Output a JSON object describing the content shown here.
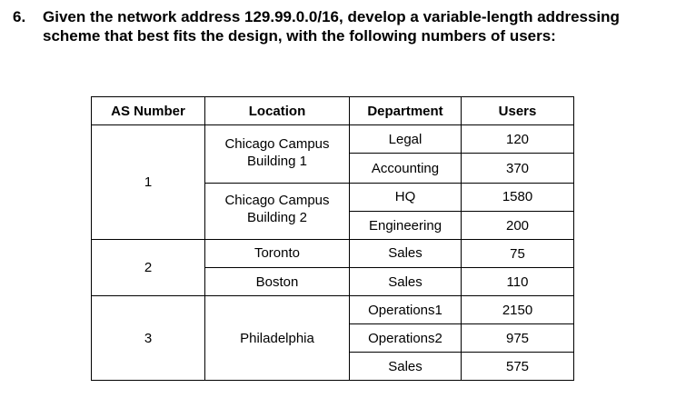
{
  "question": {
    "number": "6.",
    "text": "Given the network address 129.99.0.0/16, develop a variable-length addressing scheme that best fits the design, with the following numbers of users:"
  },
  "table": {
    "headers": {
      "as_number": "AS Number",
      "location": "Location",
      "department": "Department",
      "users": "Users"
    },
    "as_numbers": [
      "1",
      "2",
      "3"
    ],
    "locations": {
      "chicago1_line1": "Chicago Campus",
      "chicago1_line2": "Building 1",
      "chicago2_line1": "Chicago Campus",
      "chicago2_line2": "Building 2",
      "toronto": "Toronto",
      "boston": "Boston",
      "philadelphia": "Philadelphia"
    },
    "rows": [
      {
        "department": "Legal",
        "users": "120"
      },
      {
        "department": "Accounting",
        "users": "370"
      },
      {
        "department": "HQ",
        "users": "1580"
      },
      {
        "department": "Engineering",
        "users": "200"
      },
      {
        "department": "Sales",
        "users": "75"
      },
      {
        "department": "Sales",
        "users": "110"
      },
      {
        "department": "Operations1",
        "users": "2150"
      },
      {
        "department": "Operations2",
        "users": "975"
      },
      {
        "department": "Sales",
        "users": "575"
      }
    ]
  }
}
